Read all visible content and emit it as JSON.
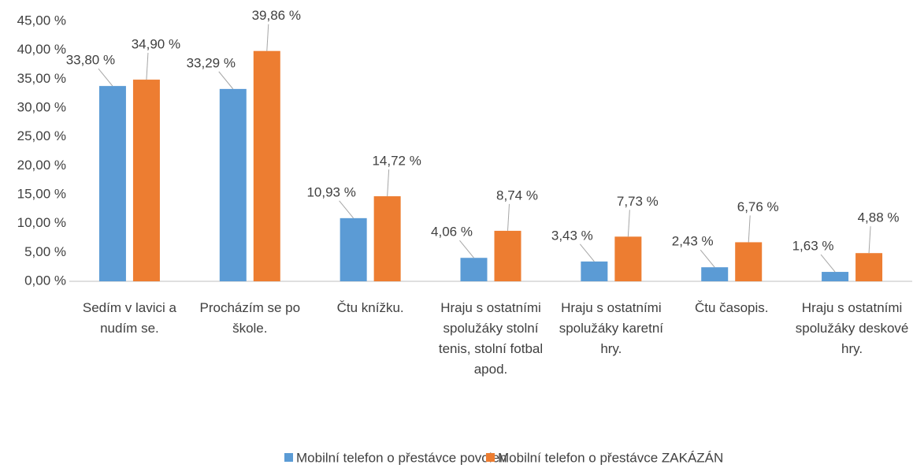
{
  "chart_data": {
    "type": "bar",
    "categories": [
      "Sedím v lavici a nudím se.",
      "Procházím se po škole.",
      "Čtu knížku.",
      "Hraju s ostatními spolužáky stolní tenis, stolní fotbal apod.",
      "Hraju s ostatními spolužáky karetní hry.",
      "Čtu časopis.",
      "Hraju s ostatními spolužáky deskové hry."
    ],
    "series": [
      {
        "name": "Mobilní telefon o přestávce povolen",
        "color": "#5b9bd5",
        "values": [
          33.8,
          33.29,
          10.93,
          4.06,
          3.43,
          2.43,
          1.63
        ],
        "value_labels": [
          "33,80 %",
          "33,29 %",
          "10,93 %",
          "4,06 %",
          "3,43 %",
          "2,43 %",
          "1,63 %"
        ]
      },
      {
        "name": "Mobilní telefon o přestávce ZAKÁZÁN",
        "color": "#ed7d31",
        "values": [
          34.9,
          39.86,
          14.72,
          8.74,
          7.73,
          6.76,
          4.88
        ],
        "value_labels": [
          "34,90 %",
          "39,86 %",
          "14,72 %",
          "8,74 %",
          "7,73 %",
          "6,76 %",
          "4,88 %"
        ]
      }
    ],
    "ylim": [
      0,
      45
    ],
    "yticks": [
      {
        "value": 0,
        "label": "0,00 %"
      },
      {
        "value": 5,
        "label": "5,00 %"
      },
      {
        "value": 10,
        "label": "10,00 %"
      },
      {
        "value": 15,
        "label": "15,00 %"
      },
      {
        "value": 20,
        "label": "20,00 %"
      },
      {
        "value": 25,
        "label": "25,00 %"
      },
      {
        "value": 30,
        "label": "30,00 %"
      },
      {
        "value": 35,
        "label": "35,00 %"
      },
      {
        "value": 40,
        "label": "40,00 %"
      },
      {
        "value": 45,
        "label": "45,00 %"
      }
    ],
    "grid": false,
    "legend": "bottom"
  }
}
